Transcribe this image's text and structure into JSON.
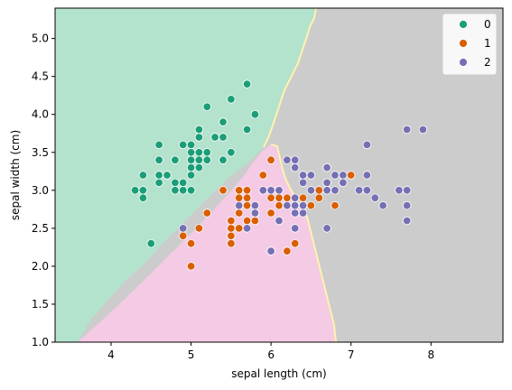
{
  "chart_data": {
    "type": "scatter",
    "title": "",
    "xlabel": "sepal length (cm)",
    "ylabel": "sepal width (cm)",
    "xlim": [
      3.3,
      8.9
    ],
    "ylim": [
      1.0,
      5.4
    ],
    "xticks": [
      4,
      5,
      6,
      7,
      8
    ],
    "yticks": [
      1.0,
      1.5,
      2.0,
      2.5,
      3.0,
      3.5,
      4.0,
      4.5,
      5.0
    ],
    "legend_position": "top-right",
    "decision_regions": [
      {
        "class": "0",
        "color": "#b3e2cd"
      },
      {
        "class": "1",
        "color": "#f4cae4"
      },
      {
        "class": "2",
        "color": "#cccccc"
      }
    ],
    "boundary_color": "#fff2ae",
    "series": [
      {
        "name": "0",
        "color": "#1b9e77",
        "points": [
          [
            5.1,
            3.5
          ],
          [
            4.9,
            3.0
          ],
          [
            4.7,
            3.2
          ],
          [
            4.6,
            3.1
          ],
          [
            5.0,
            3.6
          ],
          [
            5.4,
            3.9
          ],
          [
            4.6,
            3.4
          ],
          [
            5.0,
            3.4
          ],
          [
            4.4,
            2.9
          ],
          [
            4.9,
            3.1
          ],
          [
            5.4,
            3.7
          ],
          [
            4.8,
            3.4
          ],
          [
            4.8,
            3.0
          ],
          [
            4.3,
            3.0
          ],
          [
            5.8,
            4.0
          ],
          [
            5.7,
            4.4
          ],
          [
            5.4,
            3.9
          ],
          [
            5.1,
            3.5
          ],
          [
            5.7,
            3.8
          ],
          [
            5.1,
            3.8
          ],
          [
            5.4,
            3.4
          ],
          [
            5.1,
            3.7
          ],
          [
            4.6,
            3.6
          ],
          [
            5.1,
            3.3
          ],
          [
            4.8,
            3.4
          ],
          [
            5.0,
            3.0
          ],
          [
            5.0,
            3.4
          ],
          [
            5.2,
            3.5
          ],
          [
            5.2,
            3.4
          ],
          [
            4.7,
            3.2
          ],
          [
            4.8,
            3.1
          ],
          [
            5.4,
            3.4
          ],
          [
            5.2,
            4.1
          ],
          [
            5.5,
            4.2
          ],
          [
            4.9,
            3.1
          ],
          [
            5.0,
            3.2
          ],
          [
            5.5,
            3.5
          ],
          [
            4.9,
            3.6
          ],
          [
            4.4,
            3.0
          ],
          [
            5.1,
            3.4
          ],
          [
            5.0,
            3.5
          ],
          [
            4.5,
            2.3
          ],
          [
            4.4,
            3.2
          ],
          [
            5.0,
            3.5
          ],
          [
            5.1,
            3.8
          ],
          [
            4.8,
            3.0
          ],
          [
            5.1,
            3.8
          ],
          [
            4.6,
            3.2
          ],
          [
            5.3,
            3.7
          ],
          [
            5.0,
            3.3
          ]
        ]
      },
      {
        "name": "1",
        "color": "#d95f02",
        "points": [
          [
            7.0,
            3.2
          ],
          [
            6.4,
            3.2
          ],
          [
            6.9,
            3.1
          ],
          [
            5.5,
            2.3
          ],
          [
            6.5,
            2.8
          ],
          [
            5.7,
            2.8
          ],
          [
            6.3,
            3.3
          ],
          [
            4.9,
            2.4
          ],
          [
            6.6,
            2.9
          ],
          [
            5.2,
            2.7
          ],
          [
            5.0,
            2.0
          ],
          [
            5.9,
            3.0
          ],
          [
            6.0,
            2.2
          ],
          [
            6.1,
            2.9
          ],
          [
            5.6,
            2.9
          ],
          [
            6.7,
            3.1
          ],
          [
            5.6,
            3.0
          ],
          [
            5.8,
            2.7
          ],
          [
            6.2,
            2.2
          ],
          [
            5.6,
            2.5
          ],
          [
            5.9,
            3.2
          ],
          [
            6.1,
            2.8
          ],
          [
            6.3,
            2.5
          ],
          [
            6.1,
            2.8
          ],
          [
            6.4,
            2.9
          ],
          [
            6.6,
            3.0
          ],
          [
            6.8,
            2.8
          ],
          [
            6.7,
            3.0
          ],
          [
            6.0,
            2.9
          ],
          [
            5.7,
            2.6
          ],
          [
            5.5,
            2.4
          ],
          [
            5.5,
            2.4
          ],
          [
            5.8,
            2.7
          ],
          [
            6.0,
            2.7
          ],
          [
            5.4,
            3.0
          ],
          [
            6.0,
            3.4
          ],
          [
            6.7,
            3.1
          ],
          [
            6.3,
            2.3
          ],
          [
            5.6,
            3.0
          ],
          [
            5.5,
            2.5
          ],
          [
            5.5,
            2.6
          ],
          [
            6.1,
            3.0
          ],
          [
            5.8,
            2.6
          ],
          [
            5.0,
            2.3
          ],
          [
            5.6,
            2.7
          ],
          [
            5.7,
            3.0
          ],
          [
            5.7,
            2.9
          ],
          [
            6.2,
            2.9
          ],
          [
            5.1,
            2.5
          ],
          [
            5.7,
            2.8
          ]
        ]
      },
      {
        "name": "2",
        "color": "#7570b3",
        "points": [
          [
            6.3,
            3.3
          ],
          [
            5.8,
            2.7
          ],
          [
            7.1,
            3.0
          ],
          [
            6.3,
            2.9
          ],
          [
            6.5,
            3.0
          ],
          [
            7.6,
            3.0
          ],
          [
            4.9,
            2.5
          ],
          [
            7.3,
            2.9
          ],
          [
            6.7,
            2.5
          ],
          [
            7.2,
            3.6
          ],
          [
            6.5,
            3.2
          ],
          [
            6.4,
            2.7
          ],
          [
            6.8,
            3.0
          ],
          [
            5.7,
            2.5
          ],
          [
            5.8,
            2.8
          ],
          [
            6.4,
            3.2
          ],
          [
            6.5,
            3.0
          ],
          [
            7.7,
            3.8
          ],
          [
            7.7,
            2.6
          ],
          [
            6.0,
            2.2
          ],
          [
            6.9,
            3.2
          ],
          [
            5.6,
            2.8
          ],
          [
            7.7,
            2.8
          ],
          [
            6.3,
            2.7
          ],
          [
            6.7,
            3.3
          ],
          [
            7.2,
            3.2
          ],
          [
            6.2,
            2.8
          ],
          [
            6.1,
            3.0
          ],
          [
            6.4,
            2.8
          ],
          [
            7.2,
            3.0
          ],
          [
            7.4,
            2.8
          ],
          [
            7.9,
            3.8
          ],
          [
            6.4,
            2.8
          ],
          [
            6.3,
            2.8
          ],
          [
            6.1,
            2.6
          ],
          [
            7.7,
            3.0
          ],
          [
            6.3,
            3.4
          ],
          [
            6.4,
            3.1
          ],
          [
            6.0,
            3.0
          ],
          [
            6.9,
            3.1
          ],
          [
            6.7,
            3.1
          ],
          [
            6.9,
            3.1
          ],
          [
            5.8,
            2.7
          ],
          [
            6.8,
            3.2
          ],
          [
            6.7,
            3.3
          ],
          [
            6.7,
            3.0
          ],
          [
            6.3,
            2.5
          ],
          [
            6.5,
            3.0
          ],
          [
            6.2,
            3.4
          ],
          [
            5.9,
            3.0
          ]
        ]
      }
    ]
  },
  "legend": {
    "items": [
      {
        "label": "0",
        "color": "#1b9e77"
      },
      {
        "label": "1",
        "color": "#d95f02"
      },
      {
        "label": "2",
        "color": "#7570b3"
      }
    ]
  }
}
